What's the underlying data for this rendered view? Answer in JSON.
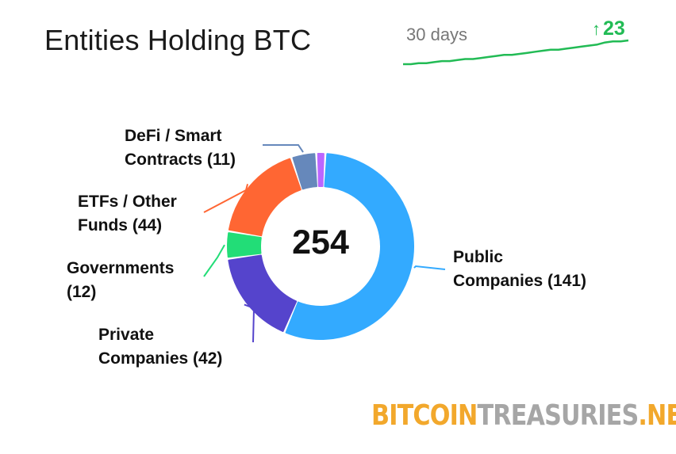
{
  "title": "Entities Holding BTC",
  "sparkline": {
    "label": "30 days",
    "delta_arrow": "↑",
    "delta": "23",
    "line_color": "#22bb55",
    "values": [
      231,
      231,
      232,
      232,
      233,
      234,
      234,
      235,
      236,
      236,
      237,
      238,
      239,
      240,
      240,
      241,
      242,
      243,
      244,
      245,
      245,
      246,
      247,
      248,
      249,
      250,
      252,
      253,
      253,
      254
    ]
  },
  "chart_data": {
    "type": "pie",
    "total_label": "254",
    "slices": [
      {
        "label_line1": "Public",
        "label_line2": "Companies (141)",
        "value": 141,
        "color": "#33aaff"
      },
      {
        "label_line1": "Private",
        "label_line2": "Companies (42)",
        "value": 42,
        "color": "#5544cc"
      },
      {
        "label_line1": "Governments",
        "label_line2": "(12)",
        "value": 12,
        "color": "#22dd77"
      },
      {
        "label_line1": "ETFs / Other",
        "label_line2": "Funds (44)",
        "value": 44,
        "color": "#ff6633"
      },
      {
        "label_line1": "DeFi / Smart",
        "label_line2": "Contracts (11)",
        "value": 11,
        "color": "#6688bb"
      },
      {
        "label_line1": "",
        "label_line2": "",
        "value": 4,
        "color": "#bb66ff"
      }
    ]
  },
  "logo": {
    "part1": "BITCOIN",
    "part2": "TREASURIES",
    "part3": ".NET"
  }
}
